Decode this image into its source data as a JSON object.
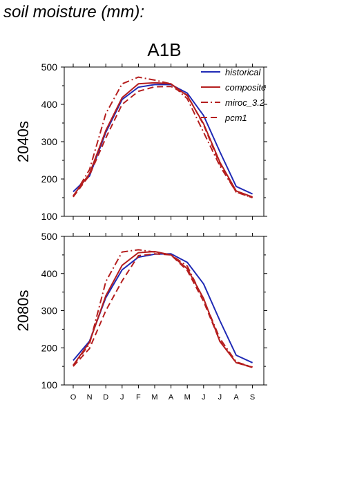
{
  "page_title": "soil moisture (mm):",
  "scenario": "A1B",
  "colors": {
    "historical": "#1f2ab5",
    "projection": "#b51e1e",
    "axis": "#000000"
  },
  "legend": [
    {
      "name": "historical",
      "color": "#1f2ab5",
      "style": "solid"
    },
    {
      "name": "composite",
      "color": "#b51e1e",
      "style": "solid"
    },
    {
      "name": "miroc_3.2",
      "color": "#b51e1e",
      "style": "dashdot"
    },
    {
      "name": "pcm1",
      "color": "#b51e1e",
      "style": "dashed"
    }
  ],
  "chart_data": [
    {
      "type": "line",
      "ylabel": "2040s",
      "categories": [
        "O",
        "N",
        "D",
        "J",
        "F",
        "M",
        "A",
        "M",
        "J",
        "J",
        "A",
        "S"
      ],
      "ylim": [
        100,
        500
      ],
      "yticks": [
        100,
        200,
        300,
        400,
        500
      ],
      "legend_position": "top-right",
      "series": [
        {
          "name": "historical",
          "style": "solid",
          "values": [
            166,
            208,
            325,
            413,
            446,
            453,
            453,
            430,
            370,
            273,
            180,
            160
          ]
        },
        {
          "name": "composite",
          "style": "solid",
          "values": [
            155,
            214,
            330,
            418,
            455,
            458,
            455,
            423,
            348,
            245,
            168,
            152
          ]
        },
        {
          "name": "miroc_3.2",
          "style": "dashdot",
          "values": [
            153,
            225,
            375,
            455,
            473,
            465,
            455,
            415,
            325,
            235,
            165,
            150
          ]
        },
        {
          "name": "pcm1",
          "style": "dashed",
          "values": [
            152,
            210,
            310,
            400,
            435,
            447,
            448,
            425,
            345,
            240,
            165,
            150
          ]
        }
      ]
    },
    {
      "type": "line",
      "ylabel": "2080s",
      "categories": [
        "O",
        "N",
        "D",
        "J",
        "F",
        "M",
        "A",
        "M",
        "J",
        "J",
        "A",
        "S"
      ],
      "ylim": [
        100,
        500
      ],
      "yticks": [
        100,
        200,
        300,
        400,
        500
      ],
      "series": [
        {
          "name": "historical",
          "style": "solid",
          "values": [
            166,
            218,
            335,
            410,
            444,
            452,
            453,
            430,
            372,
            273,
            180,
            160
          ]
        },
        {
          "name": "composite",
          "style": "solid",
          "values": [
            153,
            215,
            340,
            422,
            456,
            459,
            450,
            413,
            333,
            217,
            160,
            148
          ]
        },
        {
          "name": "miroc_3.2",
          "style": "dashdot",
          "values": [
            152,
            210,
            378,
            458,
            464,
            458,
            450,
            420,
            330,
            225,
            162,
            148
          ]
        },
        {
          "name": "pcm1",
          "style": "dashed",
          "values": [
            150,
            198,
            300,
            380,
            448,
            453,
            450,
            408,
            325,
            218,
            160,
            147
          ]
        }
      ]
    }
  ]
}
